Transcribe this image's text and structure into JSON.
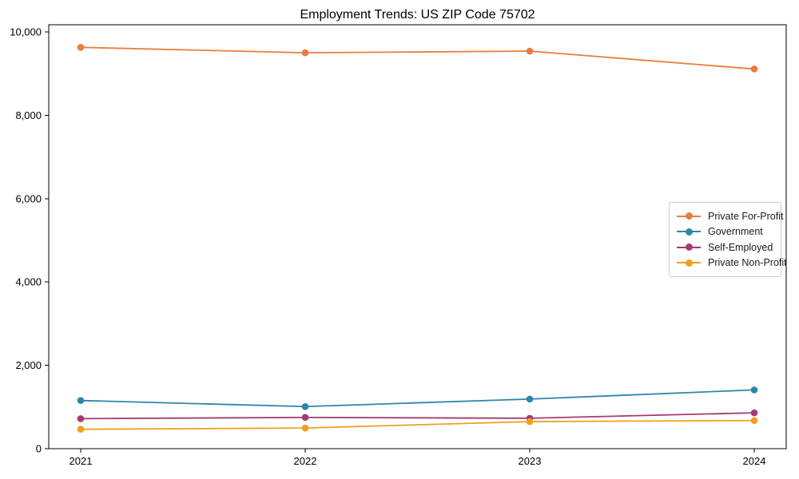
{
  "title": "Employment Trends: US ZIP Code 75702",
  "chart_data": {
    "type": "line",
    "title": "Employment Trends: US ZIP Code 75702",
    "x": [
      2021,
      2022,
      2023,
      2024
    ],
    "xtick_labels": [
      "2021",
      "2022",
      "2023",
      "2024"
    ],
    "series": [
      {
        "name": "Private For-Profit",
        "color": "#E87D3E",
        "values": [
          9630,
          9500,
          9540,
          9110
        ]
      },
      {
        "name": "Government",
        "color": "#2E86AB",
        "values": [
          1155,
          1010,
          1190,
          1410
        ]
      },
      {
        "name": "Self-Employed",
        "color": "#A23B72",
        "values": [
          720,
          750,
          730,
          860
        ]
      },
      {
        "name": "Private Non-Profit",
        "color": "#F29E1F",
        "values": [
          465,
          495,
          650,
          675
        ]
      }
    ],
    "ylim": [
      0,
      10000
    ],
    "yticks": [
      0,
      2000,
      4000,
      6000,
      8000,
      10000
    ],
    "ytick_labels": [
      "0",
      "2,000",
      "4,000",
      "6,000",
      "8,000",
      "10,000"
    ],
    "xlabel": "",
    "ylabel": "",
    "grid": false,
    "marker": "circle",
    "legend_position": "center-right"
  }
}
